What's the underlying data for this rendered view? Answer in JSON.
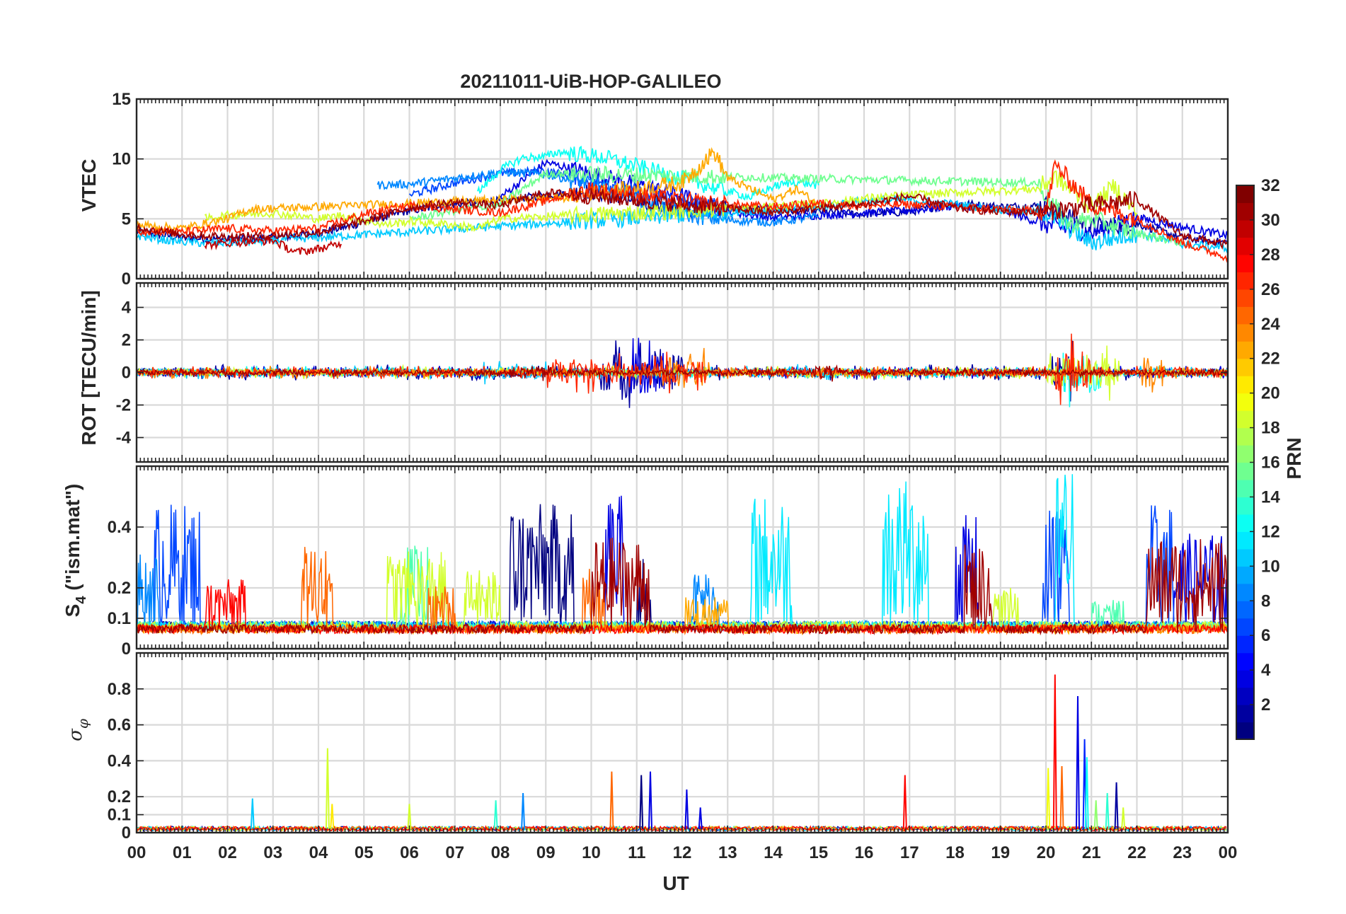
{
  "chart_data": {
    "type": "line",
    "title": "20211011-UiB-HOP-GALILEO",
    "xlabel": "UT",
    "x_tick_labels": [
      "00",
      "01",
      "02",
      "03",
      "04",
      "05",
      "06",
      "07",
      "08",
      "09",
      "10",
      "11",
      "12",
      "13",
      "14",
      "15",
      "16",
      "17",
      "18",
      "19",
      "20",
      "21",
      "22",
      "23",
      "00"
    ],
    "xlim": [
      0,
      24
    ],
    "colorbar": {
      "label": "PRN",
      "colormap": "jet",
      "range": [
        1,
        32
      ],
      "tick_labels": [
        "2",
        "4",
        "6",
        "8",
        "10",
        "12",
        "14",
        "16",
        "18",
        "20",
        "22",
        "24",
        "26",
        "28",
        "30",
        "32"
      ]
    },
    "panels": [
      {
        "id": "vtec",
        "ylabel": "VTEC",
        "ylim": [
          0,
          15
        ],
        "y_ticks": [
          0,
          5,
          10,
          15
        ],
        "y_tick_labels": [
          "0",
          "5",
          "10",
          "15"
        ],
        "series": [
          {
            "prn": 2,
            "x": [
              0.0,
              1.0,
              2.0,
              3.0,
              4.0,
              5.0,
              6.0,
              7.0,
              8.0,
              9.0,
              10.0,
              11.0,
              12.0,
              13.0,
              14.0,
              15.0,
              16.0,
              17.0,
              18.0,
              19.0,
              20.0,
              21.0,
              22.0,
              23.0,
              24.0
            ],
            "y": [
              4.0,
              3.4,
              3.3,
              3.4,
              3.8,
              4.7,
              5.7,
              6.2,
              6.5,
              7.0,
              7.3,
              6.5,
              5.8,
              5.9,
              5.8,
              5.6,
              5.4,
              5.6,
              6.3,
              6.0,
              6.1,
              4.3,
              4.6,
              3.4,
              3.0
            ]
          },
          {
            "prn": 4,
            "x": [
              8.0,
              9.0,
              10.0,
              11.0,
              12.0,
              13.0,
              14.0,
              15.0,
              16.0,
              17.0,
              18.0,
              19.0,
              20.0,
              21.0,
              22.0,
              23.0,
              24.0
            ],
            "y": [
              6.8,
              9.7,
              8.8,
              7.9,
              6.9,
              5.6,
              5.1,
              5.3,
              5.5,
              5.7,
              6.1,
              5.8,
              4.5,
              3.8,
              5.1,
              4.3,
              3.6
            ]
          },
          {
            "prn": 7,
            "x": [
              6.0,
              7.0,
              8.0,
              9.0,
              10.0,
              11.0,
              12.0,
              13.0,
              14.0
            ],
            "y": [
              7.0,
              8.0,
              8.8,
              9.0,
              8.2,
              7.2,
              6.4,
              5.9,
              5.4
            ]
          },
          {
            "prn": 9,
            "x": [
              5.3,
              6.0,
              7.0,
              8.0,
              9.0,
              10.0,
              11.0,
              12.0,
              13.0,
              14.0,
              15.0
            ],
            "y": [
              7.8,
              7.9,
              8.4,
              8.9,
              8.7,
              7.9,
              6.8,
              5.4,
              4.9,
              4.7,
              5.2
            ]
          },
          {
            "prn": 11,
            "x": [
              0.0,
              0.7,
              1.3,
              2.0,
              2.5,
              15.0,
              16.0,
              17.0,
              18.0,
              19.0,
              20.0,
              21.0,
              22.0,
              23.0,
              24.0
            ],
            "y": [
              3.6,
              3.2,
              3.0,
              3.0,
              3.1,
              6.0,
              6.5,
              6.6,
              6.2,
              5.8,
              5.5,
              3.0,
              3.8,
              2.9,
              2.6
            ]
          },
          {
            "prn": 13,
            "x": [
              7.5,
              8.0,
              8.5,
              9.0,
              9.3,
              9.7,
              10.3,
              13.5,
              14.0,
              14.5,
              15.0
            ],
            "y": [
              7.2,
              9.1,
              10.1,
              10.2,
              10.6,
              10.4,
              10.1,
              6.8,
              7.7,
              8.1,
              7.8
            ]
          },
          {
            "prn": 16,
            "x": [
              6.0,
              7.0,
              8.0,
              9.0,
              19.8,
              20.5,
              21.0,
              22.0,
              23.0
            ],
            "y": [
              5.0,
              5.7,
              6.2,
              8.8,
              8.0,
              4.5,
              5.0,
              3.8,
              3.0
            ]
          },
          {
            "prn": 19,
            "x": [
              1.5,
              2.0,
              3.0,
              4.0,
              4.5,
              5.5,
              6.0,
              7.0,
              7.5,
              8.0,
              15.0,
              16.0,
              17.0,
              19.8,
              20.2,
              21.0,
              21.5,
              22.0
            ],
            "y": [
              5.0,
              5.3,
              5.5,
              5.0,
              5.3,
              4.5,
              4.8,
              4.5,
              4.2,
              5.0,
              6.2,
              6.7,
              7.0,
              7.5,
              8.5,
              6.0,
              7.7,
              5.5
            ]
          },
          {
            "prn": 23,
            "x": [
              0.0,
              1.0,
              2.0,
              2.5,
              9.5,
              10.0,
              11.0,
              12.0,
              12.7,
              13.0,
              14.0,
              14.5,
              15.0
            ],
            "y": [
              4.5,
              4.2,
              5.0,
              5.8,
              6.8,
              7.2,
              7.5,
              8.0,
              10.6,
              8.4,
              6.6,
              7.5,
              6.2
            ]
          },
          {
            "prn": 27,
            "x": [
              0.0,
              1.0,
              2.0,
              3.0,
              4.0,
              5.0,
              6.0,
              7.0,
              8.0,
              10.0,
              11.0,
              12.0,
              13.0,
              14.0,
              15.0,
              16.0,
              17.0,
              18.0,
              19.0,
              20.0,
              20.2,
              21.0,
              22.0,
              23.0,
              24.0
            ],
            "y": [
              4.0,
              3.9,
              4.2,
              4.0,
              4.2,
              5.4,
              6.1,
              5.8,
              5.5,
              7.5,
              7.0,
              6.5,
              6.2,
              6.0,
              6.3,
              6.1,
              6.2,
              6.0,
              5.8,
              5.6,
              9.5,
              6.2,
              5.0,
              3.0,
              1.8
            ]
          },
          {
            "prn": 30,
            "x": [
              1.5,
              2.0,
              3.0,
              3.5,
              4.0,
              4.5
            ],
            "y": [
              2.8,
              3.0,
              3.2,
              2.2,
              2.5,
              2.9
            ]
          },
          {
            "prn": 31,
            "x": [
              0.0,
              1.0,
              2.0,
              3.0,
              4.0,
              5.0,
              6.0,
              7.0,
              8.0,
              9.0,
              10.0,
              11.0,
              12.0,
              13.0,
              14.0,
              15.0,
              16.0,
              17.0,
              18.0,
              19.0,
              20.0,
              21.0,
              22.0,
              23.0,
              24.0
            ],
            "y": [
              4.3,
              3.7,
              3.5,
              3.6,
              3.9,
              4.8,
              5.9,
              6.4,
              6.1,
              7.2,
              6.9,
              6.6,
              6.2,
              5.9,
              5.5,
              5.9,
              6.2,
              6.9,
              5.9,
              5.6,
              5.6,
              6.1,
              6.6,
              3.6,
              2.8
            ]
          }
        ]
      },
      {
        "id": "rot",
        "ylabel": "ROT [TECU/min]",
        "ylim": [
          -5.5,
          5.5
        ],
        "y_ticks": [
          -4,
          -2,
          0,
          2,
          4
        ],
        "y_tick_labels": [
          "-4",
          "-2",
          "0",
          "2",
          "4"
        ],
        "series": [
          {
            "prn": 2,
            "amplitude": 0.5,
            "bursts": [
              [
                10.2,
                12.0,
                2.2
              ],
              [
                20.1,
                20.6,
                2.0
              ]
            ]
          },
          {
            "prn": 4,
            "amplitude": 0.4,
            "bursts": [
              [
                10.8,
                11.6,
                2.6
              ]
            ]
          },
          {
            "prn": 11,
            "amplitude": 0.4,
            "bursts": [
              [
                7.5,
                9.0,
                0.8
              ],
              [
                14.5,
                15.5,
                0.6
              ]
            ]
          },
          {
            "prn": 13,
            "amplitude": 0.4,
            "bursts": [
              [
                20.3,
                21.2,
                2.5
              ]
            ]
          },
          {
            "prn": 19,
            "amplitude": 0.4,
            "bursts": [
              [
                20.0,
                21.6,
                1.8
              ]
            ]
          },
          {
            "prn": 24,
            "amplitude": 0.4,
            "bursts": [
              [
                11.5,
                12.6,
                1.8
              ],
              [
                22.1,
                22.6,
                1.9
              ]
            ]
          },
          {
            "prn": 27,
            "amplitude": 0.4,
            "bursts": [
              [
                9.0,
                12.5,
                1.3
              ],
              [
                20.2,
                21.0,
                2.4
              ]
            ]
          },
          {
            "prn": 31,
            "amplitude": 0.3,
            "bursts": [
              [
                8.2,
                9.2,
                0.7
              ],
              [
                14.8,
                15.4,
                0.8
              ]
            ]
          }
        ]
      },
      {
        "id": "s4",
        "ylabel": "S4 (\"ism.mat\")",
        "ylabel_main": "S",
        "ylabel_sub": "4",
        "ylabel_rest": " (\"ism.mat\")",
        "ylim": [
          0,
          0.6
        ],
        "y_ticks": [
          0,
          0.1,
          0.2,
          0.4
        ],
        "y_tick_labels": [
          "0",
          "0.1",
          "0.2",
          "0.4"
        ],
        "series": [
          {
            "prn": 1,
            "baseline": 0.06,
            "bursts": [
              [
                8.2,
                9.6,
                0.42
              ],
              [
                11.0,
                11.3,
                0.25
              ]
            ]
          },
          {
            "prn": 4,
            "baseline": 0.06,
            "bursts": [
              [
                10.3,
                10.7,
                0.45
              ],
              [
                18.0,
                18.5,
                0.38
              ],
              [
                22.8,
                24.0,
                0.32
              ]
            ]
          },
          {
            "prn": 7,
            "baseline": 0.06,
            "bursts": [
              [
                0.4,
                1.4,
                0.42
              ],
              [
                19.9,
                20.5,
                0.4
              ],
              [
                22.2,
                22.8,
                0.42
              ]
            ]
          },
          {
            "prn": 9,
            "baseline": 0.06,
            "bursts": [
              [
                0.0,
                0.5,
                0.26
              ],
              [
                12.2,
                12.8,
                0.2
              ]
            ]
          },
          {
            "prn": 12,
            "baseline": 0.06,
            "bursts": [
              [
                13.5,
                14.4,
                0.45
              ],
              [
                16.4,
                17.4,
                0.5
              ],
              [
                20.2,
                20.6,
                0.55
              ]
            ]
          },
          {
            "prn": 15,
            "baseline": 0.06,
            "bursts": [
              [
                5.8,
                6.4,
                0.28
              ],
              [
                21.0,
                21.7,
                0.1
              ]
            ]
          },
          {
            "prn": 19,
            "baseline": 0.06,
            "bursts": [
              [
                5.5,
                6.8,
                0.26
              ],
              [
                7.2,
                8.0,
                0.2
              ],
              [
                18.8,
                19.4,
                0.14
              ]
            ]
          },
          {
            "prn": 23,
            "baseline": 0.05,
            "bursts": [
              [
                12.0,
                13.0,
                0.12
              ]
            ]
          },
          {
            "prn": 25,
            "baseline": 0.05,
            "bursts": [
              [
                3.6,
                4.3,
                0.3
              ],
              [
                6.4,
                7.0,
                0.16
              ],
              [
                9.8,
                10.3,
                0.22
              ]
            ]
          },
          {
            "prn": 28,
            "baseline": 0.05,
            "bursts": [
              [
                1.5,
                2.4,
                0.18
              ]
            ]
          },
          {
            "prn": 31,
            "baseline": 0.05,
            "bursts": [
              [
                10.0,
                11.3,
                0.32
              ],
              [
                18.2,
                18.8,
                0.3
              ],
              [
                22.2,
                24.0,
                0.32
              ]
            ]
          }
        ]
      },
      {
        "id": "sigma",
        "ylabel": "σ φ",
        "ylabel_main": "σ",
        "ylabel_sub": "φ",
        "ylim": [
          0,
          1.0
        ],
        "y_ticks": [
          0,
          0.1,
          0.2,
          0.4,
          0.6,
          0.8
        ],
        "y_tick_labels": [
          "0",
          "0.1",
          "0.2",
          "0.4",
          "0.6",
          "0.8"
        ],
        "spikes": [
          {
            "prn": 11,
            "x": 2.55,
            "y": 0.19
          },
          {
            "prn": 19,
            "x": 4.2,
            "y": 0.47
          },
          {
            "prn": 21,
            "x": 4.3,
            "y": 0.16
          },
          {
            "prn": 19,
            "x": 6.0,
            "y": 0.16
          },
          {
            "prn": 14,
            "x": 7.9,
            "y": 0.18
          },
          {
            "prn": 9,
            "x": 8.5,
            "y": 0.22
          },
          {
            "prn": 25,
            "x": 10.45,
            "y": 0.34
          },
          {
            "prn": 4,
            "x": 11.3,
            "y": 0.34
          },
          {
            "prn": 1,
            "x": 11.1,
            "y": 0.32
          },
          {
            "prn": 4,
            "x": 12.1,
            "y": 0.24
          },
          {
            "prn": 4,
            "x": 12.4,
            "y": 0.14
          },
          {
            "prn": 28,
            "x": 16.9,
            "y": 0.32
          },
          {
            "prn": 28,
            "x": 20.2,
            "y": 0.88
          },
          {
            "prn": 25,
            "x": 20.35,
            "y": 0.37
          },
          {
            "prn": 20,
            "x": 20.05,
            "y": 0.36
          },
          {
            "prn": 4,
            "x": 20.7,
            "y": 0.76
          },
          {
            "prn": 6,
            "x": 20.85,
            "y": 0.52
          },
          {
            "prn": 13,
            "x": 20.9,
            "y": 0.42
          },
          {
            "prn": 17,
            "x": 21.1,
            "y": 0.18
          },
          {
            "prn": 14,
            "x": 21.35,
            "y": 0.22
          },
          {
            "prn": 2,
            "x": 21.55,
            "y": 0.28
          },
          {
            "prn": 19,
            "x": 21.7,
            "y": 0.14
          }
        ]
      }
    ]
  }
}
